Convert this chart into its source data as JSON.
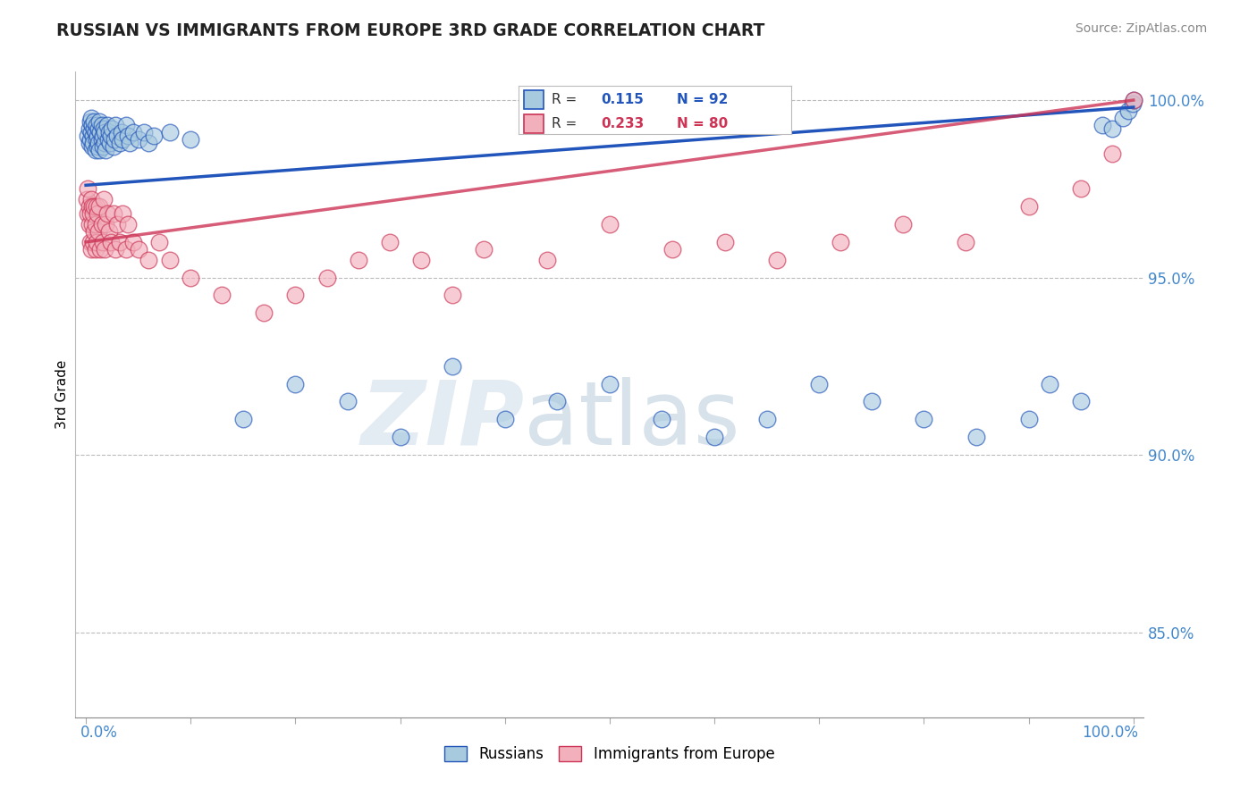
{
  "title": "RUSSIAN VS IMMIGRANTS FROM EUROPE 3RD GRADE CORRELATION CHART",
  "source": "Source: ZipAtlas.com",
  "ylabel": "3rd Grade",
  "R1": 0.115,
  "N1": 92,
  "R2": 0.233,
  "N2": 80,
  "color_blue": "#A8CADF",
  "color_pink": "#F2B0BC",
  "line_blue": "#2255BB",
  "line_pink": "#CC3355",
  "ytick_labels": [
    "85.0%",
    "90.0%",
    "95.0%",
    "100.0%"
  ],
  "ytick_values": [
    0.85,
    0.9,
    0.95,
    1.0
  ],
  "legend_label1": "Russians",
  "legend_label2": "Immigrants from Europe",
  "ylim_min": 0.826,
  "ylim_max": 1.008,
  "xlim_min": -0.01,
  "xlim_max": 1.01,
  "blue_line_y0": 0.976,
  "blue_line_y1": 0.998,
  "pink_line_y0": 0.96,
  "pink_line_y1": 1.0,
  "blue_x": [
    0.002,
    0.003,
    0.003,
    0.004,
    0.004,
    0.005,
    0.005,
    0.006,
    0.006,
    0.007,
    0.007,
    0.008,
    0.008,
    0.009,
    0.009,
    0.01,
    0.01,
    0.011,
    0.011,
    0.012,
    0.012,
    0.013,
    0.013,
    0.014,
    0.015,
    0.015,
    0.016,
    0.016,
    0.017,
    0.018,
    0.018,
    0.019,
    0.02,
    0.021,
    0.022,
    0.023,
    0.024,
    0.025,
    0.026,
    0.027,
    0.028,
    0.03,
    0.032,
    0.034,
    0.035,
    0.038,
    0.04,
    0.042,
    0.045,
    0.05,
    0.055,
    0.06,
    0.065,
    0.08,
    0.1,
    0.15,
    0.2,
    0.25,
    0.3,
    0.35,
    0.4,
    0.45,
    0.5,
    0.55,
    0.6,
    0.65,
    0.7,
    0.75,
    0.8,
    0.85,
    0.9,
    0.92,
    0.95,
    0.97,
    0.98,
    0.99,
    0.995,
    0.999,
    1.0
  ],
  "blue_y": [
    0.99,
    0.992,
    0.988,
    0.994,
    0.989,
    0.991,
    0.995,
    0.993,
    0.987,
    0.99,
    0.988,
    0.992,
    0.994,
    0.986,
    0.991,
    0.989,
    0.993,
    0.987,
    0.99,
    0.988,
    0.992,
    0.986,
    0.994,
    0.991,
    0.989,
    0.993,
    0.987,
    0.99,
    0.992,
    0.988,
    0.991,
    0.986,
    0.993,
    0.989,
    0.991,
    0.988,
    0.99,
    0.992,
    0.987,
    0.989,
    0.993,
    0.99,
    0.988,
    0.991,
    0.989,
    0.993,
    0.99,
    0.988,
    0.991,
    0.989,
    0.991,
    0.988,
    0.99,
    0.991,
    0.989,
    0.91,
    0.92,
    0.915,
    0.905,
    0.925,
    0.91,
    0.915,
    0.92,
    0.91,
    0.905,
    0.91,
    0.92,
    0.915,
    0.91,
    0.905,
    0.91,
    0.92,
    0.915,
    0.993,
    0.992,
    0.995,
    0.997,
    0.999,
    1.0
  ],
  "pink_x": [
    0.001,
    0.002,
    0.002,
    0.003,
    0.003,
    0.004,
    0.004,
    0.005,
    0.005,
    0.006,
    0.006,
    0.007,
    0.007,
    0.008,
    0.008,
    0.009,
    0.009,
    0.01,
    0.01,
    0.011,
    0.012,
    0.013,
    0.014,
    0.015,
    0.016,
    0.017,
    0.018,
    0.019,
    0.02,
    0.022,
    0.024,
    0.026,
    0.028,
    0.03,
    0.032,
    0.035,
    0.038,
    0.04,
    0.045,
    0.05,
    0.06,
    0.07,
    0.08,
    0.1,
    0.13,
    0.17,
    0.2,
    0.23,
    0.26,
    0.29,
    0.32,
    0.35,
    0.38,
    0.44,
    0.5,
    0.56,
    0.61,
    0.66,
    0.72,
    0.78,
    0.84,
    0.9,
    0.95,
    0.98,
    1.0
  ],
  "pink_y": [
    0.972,
    0.975,
    0.968,
    0.965,
    0.97,
    0.96,
    0.968,
    0.972,
    0.958,
    0.965,
    0.97,
    0.96,
    0.968,
    0.963,
    0.97,
    0.958,
    0.965,
    0.97,
    0.96,
    0.968,
    0.963,
    0.97,
    0.958,
    0.965,
    0.96,
    0.972,
    0.958,
    0.965,
    0.968,
    0.963,
    0.96,
    0.968,
    0.958,
    0.965,
    0.96,
    0.968,
    0.958,
    0.965,
    0.96,
    0.958,
    0.955,
    0.96,
    0.955,
    0.95,
    0.945,
    0.94,
    0.945,
    0.95,
    0.955,
    0.96,
    0.955,
    0.945,
    0.958,
    0.955,
    0.965,
    0.958,
    0.96,
    0.955,
    0.96,
    0.965,
    0.96,
    0.97,
    0.975,
    0.985,
    1.0
  ]
}
